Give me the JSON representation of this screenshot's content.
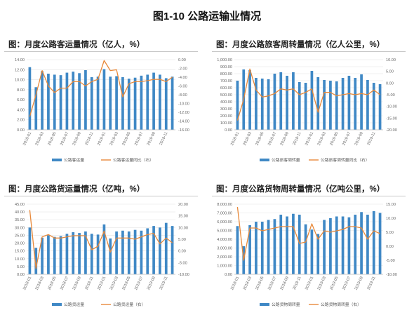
{
  "page": {
    "title": "图1-10 公路运输业情况"
  },
  "chart_data": [
    {
      "id": "p1",
      "type": "bar+line",
      "title": "图：月度公路客运量情况（亿人，%）",
      "legend": [
        "公路客运量",
        "公路客运量同比（右）"
      ],
      "categories": [
        "2018-01",
        "2018-02",
        "2018-03",
        "2018-04",
        "2018-05",
        "2018-06",
        "2018-07",
        "2018-08",
        "2018-09",
        "2018-10",
        "2018-11",
        "2018-12",
        "2019-01",
        "2019-02",
        "2019-03",
        "2019-04",
        "2019-05",
        "2019-06",
        "2019-07",
        "2019-08",
        "2019-09",
        "2019-10",
        "2019-11",
        "2019-12"
      ],
      "xticks": [
        "2018-01",
        "2018-03",
        "2018-05",
        "2018-07",
        "2018-09",
        "2018-11",
        "2019-01",
        "2019-03",
        "2019-05",
        "2019-07",
        "2019-09",
        "2019-11"
      ],
      "left_axis": {
        "min": 0,
        "max": 14,
        "step": 2,
        "labels": [
          "0.00",
          "2.00",
          "4.00",
          "6.00",
          "8.00",
          "10.00",
          "12.00",
          "14.00"
        ]
      },
      "right_axis": {
        "min": -16,
        "max": 0,
        "step": 2,
        "labels": [
          "-16.00",
          "-14.00",
          "-12.00",
          "-10.00",
          "-8.00",
          "-6.00",
          "-4.00",
          "-2.00",
          "0.00"
        ]
      },
      "bars": [
        12.5,
        8.5,
        11.7,
        11.2,
        11.0,
        10.9,
        11.4,
        11.6,
        11.3,
        11.9,
        10.5,
        10.6,
        12.1,
        10.6,
        10.7,
        10.5,
        10.2,
        10.4,
        10.8,
        11.0,
        11.4,
        11.0,
        10.3,
        10.6
      ],
      "line": [
        -13.0,
        -8.0,
        -2.5,
        -6.0,
        -7.5,
        -6.5,
        -6.5,
        -5.0,
        -5.0,
        -6.0,
        -5.0,
        -4.5,
        -0.2,
        -2.5,
        -2.3,
        -8.5,
        -5.5,
        -5.0,
        -5.0,
        -4.8,
        -4.5,
        -4.5,
        -5.0,
        -4.0
      ]
    },
    {
      "id": "p2",
      "type": "bar+line",
      "title": "图：月度公路旅客周转量情况（亿人公里，%）",
      "legend": [
        "公路旅客周转量",
        "公路旅客周转量同比（右）"
      ],
      "categories": [
        "2018-01",
        "2018-02",
        "2018-03",
        "2018-04",
        "2018-05",
        "2018-06",
        "2018-07",
        "2018-08",
        "2018-09",
        "2018-10",
        "2018-11",
        "2018-12",
        "2019-01",
        "2019-02",
        "2019-03",
        "2019-04",
        "2019-05",
        "2019-06",
        "2019-07",
        "2019-08",
        "2019-09",
        "2019-10",
        "2019-11",
        "2019-12"
      ],
      "xticks": [
        "2018-01",
        "2018-03",
        "2018-05",
        "2018-07",
        "2018-09",
        "2018-11",
        "2019-01",
        "2019-03",
        "2019-05",
        "2019-07",
        "2019-09",
        "2019-11"
      ],
      "left_axis": {
        "min": 0,
        "max": 1000,
        "step": 100,
        "labels": [
          "0.00",
          "100.00",
          "200.00",
          "300.00",
          "400.00",
          "500.00",
          "600.00",
          "700.00",
          "800.00",
          "900.00",
          "1,000.00"
        ]
      },
      "right_axis": {
        "min": -20,
        "max": 10,
        "step": 5,
        "labels": [
          "-20.00",
          "-15.00",
          "-10.00",
          "-5.00",
          "0.00",
          "5.00",
          "10.00"
        ]
      },
      "bars": [
        700,
        860,
        850,
        740,
        730,
        720,
        800,
        820,
        770,
        820,
        680,
        670,
        840,
        750,
        710,
        700,
        690,
        740,
        770,
        740,
        790,
        710,
        670,
        650
      ],
      "line": [
        -16.0,
        -7.0,
        6.0,
        -3.0,
        -6.0,
        -5.5,
        -4.5,
        -2.5,
        -3.0,
        -2.5,
        -5.0,
        -4.0,
        -2.5,
        -12.5,
        -4.0,
        -4.0,
        -5.5,
        -5.0,
        -4.5,
        -5.0,
        -4.5,
        -5.0,
        -3.0,
        -5.0
      ]
    },
    {
      "id": "p3",
      "type": "bar+line",
      "title": "图：月度公路货运量情况（亿吨，%）",
      "legend": [
        "公路货运量",
        "公路货运量（右）"
      ],
      "categories": [
        "2018-01",
        "2018-02",
        "2018-03",
        "2018-04",
        "2018-05",
        "2018-06",
        "2018-07",
        "2018-08",
        "2018-09",
        "2018-10",
        "2018-11",
        "2018-12",
        "2019-01",
        "2019-02",
        "2019-03",
        "2019-04",
        "2019-05",
        "2019-06",
        "2019-07",
        "2019-08",
        "2019-09",
        "2019-10",
        "2019-11",
        "2019-12"
      ],
      "xticks": [
        "2018-01",
        "2018-03",
        "2018-05",
        "2018-07",
        "2018-09",
        "2018-11",
        "2019-01",
        "2019-03",
        "2019-05",
        "2019-07",
        "2019-09",
        "2019-11"
      ],
      "left_axis": {
        "min": 0,
        "max": 45,
        "step": 5,
        "labels": [
          "0.00",
          "5.00",
          "10.00",
          "15.00",
          "20.00",
          "25.00",
          "30.00",
          "35.00",
          "40.00",
          "45.00"
        ]
      },
      "right_axis": {
        "min": -10,
        "max": 20,
        "step": 5,
        "labels": [
          "-10.00",
          "-5.00",
          "0.00",
          "5.00",
          "10.00",
          "15.00",
          "20.00"
        ]
      },
      "bars": [
        30.0,
        17.0,
        23.5,
        25.0,
        24.0,
        24.5,
        26.0,
        27.0,
        26.5,
        27.5,
        26.0,
        25.5,
        32.0,
        23.0,
        27.5,
        28.0,
        27.5,
        28.5,
        28.0,
        29.5,
        31.0,
        30.0,
        33.0,
        31.0
      ],
      "line": [
        17.5,
        -7.5,
        6.0,
        7.0,
        5.5,
        5.5,
        6.0,
        6.5,
        6.5,
        6.5,
        0.5,
        2.0,
        8.5,
        -0.5,
        5.5,
        5.5,
        5.5,
        5.0,
        6.0,
        7.0,
        7.5,
        3.0,
        5.5,
        3.5
      ]
    },
    {
      "id": "p4",
      "type": "bar+line",
      "title": "图：月度公路货物周转量情况（亿吨公里，%）",
      "legend": [
        "公路货物周转量",
        "公路货物周转量（右）"
      ],
      "categories": [
        "2018-01",
        "2018-02",
        "2018-03",
        "2018-04",
        "2018-05",
        "2018-06",
        "2018-07",
        "2018-08",
        "2018-09",
        "2018-10",
        "2018-11",
        "2018-12",
        "2019-01",
        "2019-02",
        "2019-03",
        "2019-04",
        "2019-05",
        "2019-06",
        "2019-07",
        "2019-08",
        "2019-09",
        "2019-10",
        "2019-11",
        "2019-12"
      ],
      "xticks": [
        "2018-01",
        "2018-03",
        "2018-05",
        "2018-07",
        "2018-09",
        "2018-11",
        "2019-01",
        "2019-03",
        "2019-05",
        "2019-07",
        "2019-09",
        "2019-11"
      ],
      "left_axis": {
        "min": 0,
        "max": 8000,
        "step": 1000,
        "labels": [
          "0.00",
          "1,000.00",
          "2,000.00",
          "3,000.00",
          "4,000.00",
          "5,000.00",
          "6,000.00",
          "7,000.00",
          "8,000.00"
        ]
      },
      "right_axis": {
        "min": -10,
        "max": 15,
        "step": 5,
        "labels": [
          "-10.00",
          "-5.00",
          "0.00",
          "5.00",
          "10.00",
          "15.00"
        ]
      },
      "bars": [
        5500,
        3200,
        5600,
        6000,
        6000,
        6200,
        6300,
        6800,
        6600,
        6900,
        6800,
        5700,
        5100,
        4600,
        6200,
        6400,
        6600,
        6600,
        6500,
        6800,
        7100,
        6800,
        7200,
        7000
      ],
      "line": [
        14.0,
        -5.0,
        6.5,
        6.5,
        5.5,
        6.0,
        6.5,
        7.0,
        7.0,
        7.0,
        1.0,
        1.5,
        8.0,
        2.5,
        5.5,
        5.0,
        5.5,
        6.0,
        7.0,
        7.0,
        6.5,
        2.5,
        5.5,
        4.5
      ]
    }
  ]
}
